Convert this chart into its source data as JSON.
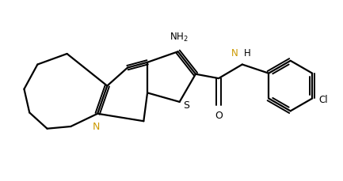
{
  "background_color": "#ffffff",
  "bond_color": "#000000",
  "N_color": "#cc9900",
  "figsize": [
    4.33,
    2.3
  ],
  "dpi": 100,
  "lw": 1.6,
  "lw_db": 1.4,
  "xlim": [
    -2.8,
    3.6
  ],
  "ylim": [
    -1.5,
    1.5
  ]
}
